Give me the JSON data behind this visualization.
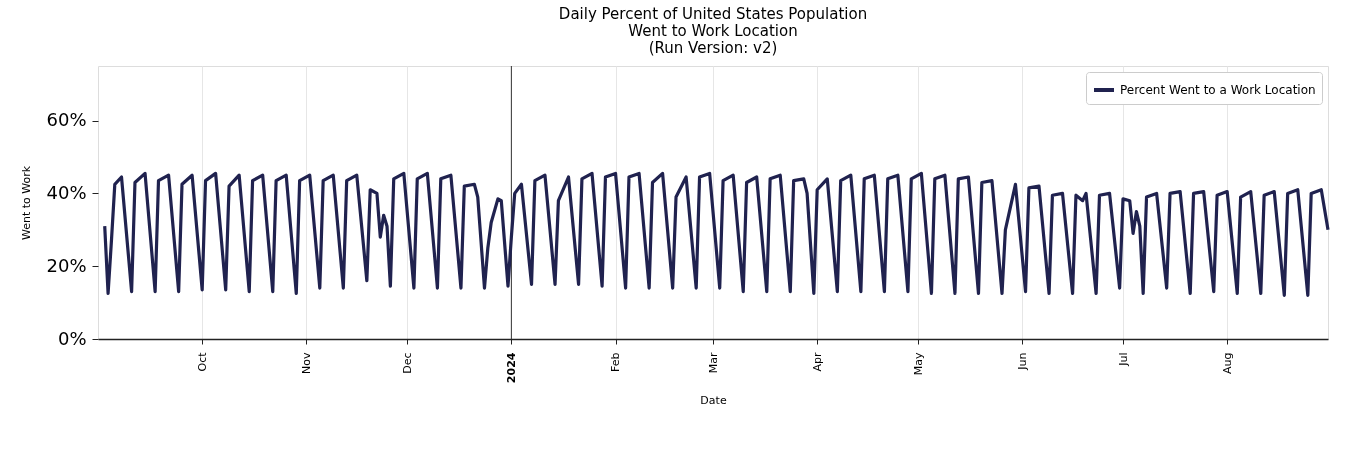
{
  "chart_data": {
    "type": "line",
    "title": "Daily Percent of United States Population\nWent to Work Location\n(Run Version: v2)",
    "xlabel": "Date",
    "ylabel": "Went to Work",
    "x": [
      "2023-09-02",
      "2023-09-03",
      "2023-09-04",
      "2023-09-05",
      "2023-09-07",
      "2023-09-10",
      "2023-09-11",
      "2023-09-14",
      "2023-09-17",
      "2023-09-18",
      "2023-09-21",
      "2023-09-24",
      "2023-09-25",
      "2023-09-28",
      "2023-10-01",
      "2023-10-02",
      "2023-10-05",
      "2023-10-08",
      "2023-10-09",
      "2023-10-12",
      "2023-10-15",
      "2023-10-16",
      "2023-10-19",
      "2023-10-22",
      "2023-10-23",
      "2023-10-26",
      "2023-10-29",
      "2023-10-30",
      "2023-11-02",
      "2023-11-05",
      "2023-11-06",
      "2023-11-09",
      "2023-11-12",
      "2023-11-13",
      "2023-11-16",
      "2023-11-19",
      "2023-11-20",
      "2023-11-22",
      "2023-11-23",
      "2023-11-24",
      "2023-11-25",
      "2023-11-26",
      "2023-11-27",
      "2023-11-30",
      "2023-12-03",
      "2023-12-04",
      "2023-12-07",
      "2023-12-10",
      "2023-12-11",
      "2023-12-14",
      "2023-12-17",
      "2023-12-18",
      "2023-12-21",
      "2023-12-22",
      "2023-12-24",
      "2023-12-25",
      "2023-12-26",
      "2023-12-28",
      "2023-12-29",
      "2023-12-31",
      "2024-01-01",
      "2024-01-02",
      "2024-01-04",
      "2024-01-07",
      "2024-01-08",
      "2024-01-11",
      "2024-01-14",
      "2024-01-15",
      "2024-01-18",
      "2024-01-21",
      "2024-01-22",
      "2024-01-25",
      "2024-01-28",
      "2024-01-29",
      "2024-02-01",
      "2024-02-04",
      "2024-02-05",
      "2024-02-08",
      "2024-02-11",
      "2024-02-12",
      "2024-02-15",
      "2024-02-18",
      "2024-02-19",
      "2024-02-22",
      "2024-02-25",
      "2024-02-26",
      "2024-02-29",
      "2024-03-03",
      "2024-03-04",
      "2024-03-07",
      "2024-03-10",
      "2024-03-11",
      "2024-03-14",
      "2024-03-17",
      "2024-03-18",
      "2024-03-21",
      "2024-03-24",
      "2024-03-25",
      "2024-03-28",
      "2024-03-29",
      "2024-03-31",
      "2024-04-01",
      "2024-04-04",
      "2024-04-07",
      "2024-04-08",
      "2024-04-11",
      "2024-04-14",
      "2024-04-15",
      "2024-04-18",
      "2024-04-21",
      "2024-04-22",
      "2024-04-25",
      "2024-04-28",
      "2024-04-29",
      "2024-05-02",
      "2024-05-05",
      "2024-05-06",
      "2024-05-09",
      "2024-05-12",
      "2024-05-13",
      "2024-05-16",
      "2024-05-19",
      "2024-05-20",
      "2024-05-23",
      "2024-05-26",
      "2024-05-27",
      "2024-05-30",
      "2024-06-02",
      "2024-06-03",
      "2024-06-06",
      "2024-06-09",
      "2024-06-10",
      "2024-06-13",
      "2024-06-16",
      "2024-06-17",
      "2024-06-19",
      "2024-06-20",
      "2024-06-23",
      "2024-06-24",
      "2024-06-27",
      "2024-06-30",
      "2024-07-01",
      "2024-07-03",
      "2024-07-04",
      "2024-07-05",
      "2024-07-06",
      "2024-07-07",
      "2024-07-08",
      "2024-07-11",
      "2024-07-14",
      "2024-07-15",
      "2024-07-18",
      "2024-07-21",
      "2024-07-22",
      "2024-07-25",
      "2024-07-28",
      "2024-07-29",
      "2024-08-01",
      "2024-08-04",
      "2024-08-05",
      "2024-08-08",
      "2024-08-11",
      "2024-08-12",
      "2024-08-15",
      "2024-08-18",
      "2024-08-19",
      "2024-08-22",
      "2024-08-25",
      "2024-08-26",
      "2024-08-29",
      "2024-08-31"
    ],
    "series": [
      {
        "name": "Percent Went to a Work Location",
        "color": "#20224f",
        "values": [
          31,
          12.5,
          27,
          42.5,
          44.5,
          13,
          43,
          45.5,
          13,
          43.5,
          45,
          13,
          42.5,
          45,
          13.5,
          43.5,
          45.5,
          13.5,
          42,
          45,
          13,
          43.5,
          45,
          13,
          43.5,
          45,
          12.5,
          43.5,
          45,
          14,
          43.5,
          45,
          14,
          43.5,
          45,
          16,
          41,
          40,
          28,
          34,
          31,
          14.5,
          44,
          45.5,
          14,
          44,
          45.5,
          14,
          44,
          45,
          14,
          42,
          42.5,
          39,
          14,
          25,
          32,
          38.5,
          38,
          14.5,
          28,
          40,
          42.5,
          15,
          43.5,
          45,
          15,
          38,
          44.5,
          15,
          44,
          45.5,
          14.5,
          44.5,
          45.5,
          14,
          44.5,
          45.5,
          14,
          43,
          45.5,
          14,
          39,
          44.5,
          14,
          44.5,
          45.5,
          14,
          43.5,
          45,
          13,
          43,
          44.5,
          13,
          44,
          45,
          13,
          43.5,
          44,
          40,
          12.5,
          41,
          44,
          13,
          43.5,
          45,
          13,
          44,
          45,
          13,
          44,
          45,
          13,
          44,
          45.5,
          12.5,
          44,
          45,
          12.5,
          44,
          44.5,
          12.5,
          43,
          43.5,
          12.5,
          30,
          42.5,
          13,
          41.5,
          42,
          12.5,
          39.5,
          40,
          12.5,
          39.5,
          38,
          40,
          12.5,
          39.5,
          40,
          14,
          38.5,
          38,
          29,
          35,
          31,
          12.5,
          39,
          40,
          14,
          40,
          40.5,
          12.5,
          40,
          40.5,
          13,
          39.5,
          40.5,
          12.5,
          39,
          40.5,
          12.5,
          39.5,
          40.5,
          12,
          40,
          41,
          12,
          40,
          41,
          30
        ]
      }
    ],
    "xlim": [
      "2023-08-31",
      "2024-08-31"
    ],
    "xticks": [
      {
        "value": "2023-10-01",
        "label": "Oct"
      },
      {
        "value": "2023-11-01",
        "label": "Nov"
      },
      {
        "value": "2023-12-01",
        "label": "Dec"
      },
      {
        "value": "2024-01-01",
        "label": "2024"
      },
      {
        "value": "2024-02-01",
        "label": "Feb"
      },
      {
        "value": "2024-03-01",
        "label": "Mar"
      },
      {
        "value": "2024-04-01",
        "label": "Apr"
      },
      {
        "value": "2024-05-01",
        "label": "May"
      },
      {
        "value": "2024-06-01",
        "label": "Jun"
      },
      {
        "value": "2024-07-01",
        "label": "Jul"
      },
      {
        "value": "2024-08-01",
        "label": "Aug"
      }
    ],
    "ylim": [
      0,
      75
    ],
    "yticks": [
      {
        "value": 0,
        "label": "0%"
      },
      {
        "value": 20,
        "label": "20%"
      },
      {
        "value": 40,
        "label": "40%"
      },
      {
        "value": 60,
        "label": "60%"
      }
    ],
    "ref_lines": [
      {
        "axis": "x",
        "value": "2024-01-01",
        "color": "#333333"
      }
    ],
    "grid": "x",
    "legend": "top right",
    "marker": "none",
    "line_style": "solid"
  }
}
